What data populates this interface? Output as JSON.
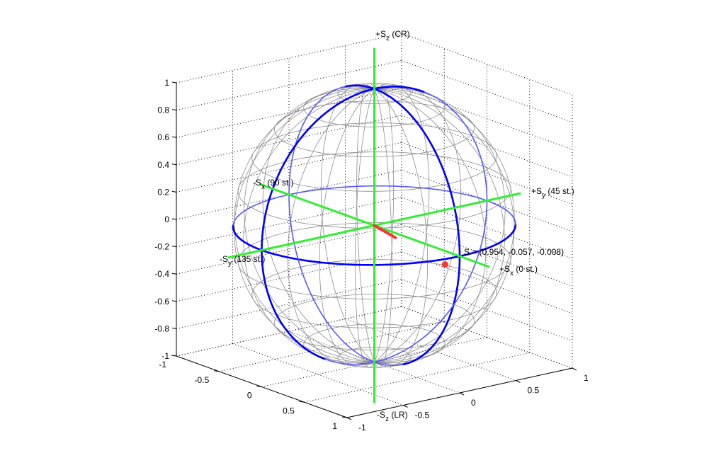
{
  "chart_data": {
    "type": "scatter3d",
    "title": "",
    "axes": {
      "x": {
        "range": [
          -1,
          1
        ],
        "ticks": [
          "-1",
          "-0.5",
          "0",
          "0.5",
          "1"
        ]
      },
      "y": {
        "range": [
          -1,
          1
        ],
        "ticks": [
          "-1",
          "-0.5",
          "0",
          "0.5",
          "1"
        ]
      },
      "z": {
        "range": [
          -1,
          1
        ],
        "ticks": [
          "-1",
          "-0.8",
          "-0.6",
          "-0.4",
          "-0.2",
          "0",
          "0.2",
          "0.4",
          "0.6",
          "0.8",
          "1"
        ]
      }
    },
    "grid": true,
    "sphere": {
      "radius": 1,
      "wireframe": true,
      "great_circles": [
        "equator",
        "x-z meridian",
        "y-z meridian"
      ]
    },
    "axis_labels": {
      "plus_x": {
        "prefix": "+S",
        "sub": "x",
        "suffix": " (0 st.)"
      },
      "minus_x": {
        "prefix": "-S",
        "sub": "x",
        "suffix": " (90 st.)"
      },
      "plus_y": {
        "prefix": "+S",
        "sub": "y",
        "suffix": " (45 st.)"
      },
      "minus_y": {
        "prefix": "-S",
        "sub": "y",
        "suffix": " (135 st.)"
      },
      "plus_z": {
        "prefix": "+S",
        "sub": "z",
        "suffix": " (CR)"
      },
      "minus_z": {
        "prefix": "-S",
        "sub": "z",
        "suffix": " (LR)"
      }
    },
    "point": {
      "x": 0.954,
      "y": -0.057,
      "z": -0.008,
      "label": "S = (0.954, -0.057, -0.008)"
    },
    "colors": {
      "sphere_mesh": "#8c8c8c",
      "great_circle": "#0000ff",
      "axes": "#33ee33",
      "point": "#ff3333"
    }
  }
}
